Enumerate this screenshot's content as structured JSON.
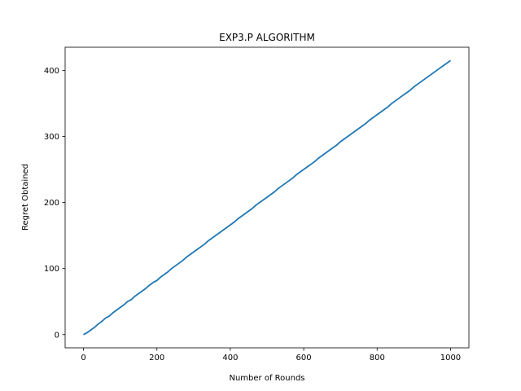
{
  "chart_data": {
    "type": "line",
    "title": "EXP3.P ALGORITHM",
    "xlabel": "Number of Rounds",
    "ylabel": "Regret Obtained",
    "xlim": [
      -50,
      1050
    ],
    "ylim": [
      -20,
      435
    ],
    "xticks": [
      0,
      200,
      400,
      600,
      800,
      1000
    ],
    "yticks": [
      0,
      100,
      200,
      300,
      400
    ],
    "grid": false,
    "legend": "none",
    "series": [
      {
        "color": "#1f77b4",
        "x": [
          0,
          10,
          20,
          30,
          40,
          50,
          60,
          70,
          80,
          90,
          100,
          110,
          120,
          130,
          140,
          150,
          160,
          170,
          180,
          190,
          200,
          210,
          220,
          230,
          240,
          250,
          260,
          270,
          280,
          290,
          300,
          310,
          320,
          330,
          340,
          350,
          360,
          370,
          380,
          390,
          400,
          410,
          420,
          430,
          440,
          450,
          460,
          470,
          480,
          490,
          500,
          510,
          520,
          530,
          540,
          550,
          560,
          570,
          580,
          590,
          600,
          610,
          620,
          630,
          640,
          650,
          660,
          670,
          680,
          690,
          700,
          710,
          720,
          730,
          740,
          750,
          760,
          770,
          780,
          790,
          800,
          810,
          820,
          830,
          840,
          850,
          860,
          870,
          880,
          890,
          900,
          910,
          920,
          930,
          940,
          950,
          960,
          970,
          980,
          990,
          1000
        ],
        "y": [
          0,
          3,
          7,
          11,
          16,
          20,
          25,
          28,
          33,
          37,
          41,
          45,
          50,
          53,
          58,
          62,
          66,
          70,
          75,
          79,
          82,
          87,
          91,
          95,
          100,
          104,
          108,
          112,
          117,
          121,
          125,
          129,
          133,
          137,
          142,
          146,
          150,
          154,
          158,
          162,
          166,
          170,
          175,
          179,
          183,
          187,
          191,
          196,
          200,
          204,
          208,
          212,
          216,
          221,
          225,
          229,
          233,
          237,
          242,
          246,
          250,
          254,
          258,
          262,
          267,
          271,
          275,
          279,
          283,
          287,
          292,
          296,
          300,
          304,
          308,
          312,
          316,
          320,
          325,
          329,
          333,
          337,
          341,
          345,
          350,
          354,
          358,
          362,
          366,
          370,
          375,
          379,
          383,
          387,
          391,
          395,
          399,
          403,
          407,
          411,
          415
        ]
      }
    ]
  }
}
